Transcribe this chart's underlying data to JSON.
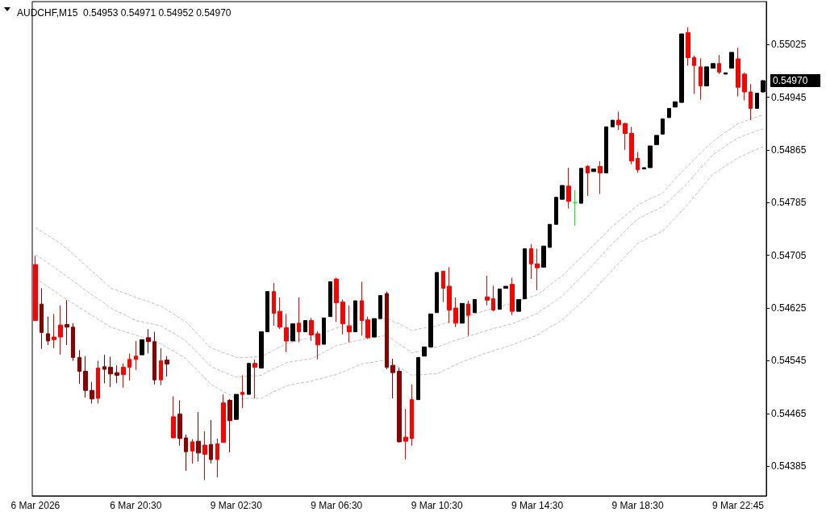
{
  "chart_data": {
    "type": "candlestick",
    "title": "AUDCHF,M15  0.54953 0.54971 0.54952 0.54970",
    "categories": [
      "6 Mar 2026",
      null,
      null,
      null,
      null,
      null,
      null,
      null,
      null,
      null,
      null,
      null,
      null,
      null,
      null,
      null,
      "6 Mar 20:30",
      null,
      null,
      null,
      null,
      null,
      null,
      null,
      null,
      null,
      null,
      null,
      null,
      null,
      null,
      null,
      "9 Mar 02:30",
      null,
      null,
      null,
      null,
      null,
      null,
      null,
      null,
      null,
      null,
      null,
      null,
      null,
      null,
      null,
      "9 Mar 06:30",
      null,
      null,
      null,
      null,
      null,
      null,
      null,
      null,
      null,
      null,
      null,
      null,
      null,
      null,
      null,
      "9 Mar 10:30",
      null,
      null,
      null,
      null,
      null,
      null,
      null,
      null,
      null,
      null,
      null,
      null,
      null,
      null,
      null,
      "9 Mar 14:30",
      null,
      null,
      null,
      null,
      null,
      null,
      null,
      null,
      null,
      null,
      null,
      null,
      null,
      null,
      null,
      "9 Mar 18:30",
      null,
      null,
      null,
      null,
      null,
      null,
      null,
      null,
      null,
      null,
      null,
      null,
      null,
      null,
      null,
      "9 Mar 22:45",
      null,
      null,
      null,
      null
    ],
    "ohlc": [
      [
        0.54691,
        0.54704,
        0.54606,
        0.54606
      ],
      [
        0.54631,
        0.54655,
        0.54563,
        0.54588
      ],
      [
        0.54586,
        0.54612,
        0.54569,
        0.54575
      ],
      [
        0.54581,
        0.54616,
        0.54564,
        0.54577
      ],
      [
        0.54599,
        0.54629,
        0.54554,
        0.54581
      ],
      [
        0.546,
        0.54637,
        0.54569,
        0.54596
      ],
      [
        0.54596,
        0.54602,
        0.54545,
        0.5455
      ],
      [
        0.5455,
        0.54561,
        0.5451,
        0.54529
      ],
      [
        0.54529,
        0.54552,
        0.54489,
        0.545
      ],
      [
        0.545,
        0.54513,
        0.5448,
        0.54487
      ],
      [
        0.54534,
        0.54545,
        0.5448,
        0.54488
      ],
      [
        0.54536,
        0.54554,
        0.54511,
        0.54532
      ],
      [
        0.54535,
        0.54551,
        0.54505,
        0.54525
      ],
      [
        0.54527,
        0.54538,
        0.54511,
        0.54523
      ],
      [
        0.54535,
        0.54541,
        0.54504,
        0.54524
      ],
      [
        0.54547,
        0.54556,
        0.54515,
        0.54535
      ],
      [
        0.54552,
        0.54575,
        0.54531,
        0.54547
      ],
      [
        0.54554,
        0.54577,
        0.54554,
        0.54577
      ],
      [
        0.5458,
        0.54593,
        0.54556,
        0.54574
      ],
      [
        0.54574,
        0.54589,
        0.54509,
        0.54516
      ],
      [
        0.54545,
        0.54564,
        0.54508,
        0.54516
      ],
      [
        0.54546,
        0.54552,
        0.54521,
        0.5454
      ],
      [
        0.5446,
        0.54491,
        0.54428,
        0.54428
      ],
      [
        0.54464,
        0.54485,
        0.54416,
        0.54427
      ],
      [
        0.54428,
        0.54433,
        0.54378,
        0.54407
      ],
      [
        0.54422,
        0.54426,
        0.54389,
        0.54408
      ],
      [
        0.54423,
        0.54467,
        0.54392,
        0.54405
      ],
      [
        0.54417,
        0.54438,
        0.54364,
        0.54403
      ],
      [
        0.54418,
        0.54455,
        0.54389,
        0.54395
      ],
      [
        0.54419,
        0.54427,
        0.54368,
        0.54395
      ],
      [
        0.54481,
        0.54494,
        0.54421,
        0.54421
      ],
      [
        0.54485,
        0.54487,
        0.54406,
        0.54454
      ],
      [
        0.54456,
        0.54494,
        0.54456,
        0.54494
      ],
      [
        0.54497,
        0.54523,
        0.54473,
        0.54494
      ],
      [
        0.54494,
        0.54541,
        0.54494,
        0.54541
      ],
      [
        0.54541,
        0.54547,
        0.54488,
        0.54535
      ],
      [
        0.54534,
        0.54589,
        0.54534,
        0.54589
      ],
      [
        0.54589,
        0.5465,
        0.54589,
        0.5465
      ],
      [
        0.5465,
        0.54663,
        0.54598,
        0.54617
      ],
      [
        0.5462,
        0.54641,
        0.54593,
        0.54596
      ],
      [
        0.54595,
        0.54616,
        0.54558,
        0.54575
      ],
      [
        0.54575,
        0.54601,
        0.54575,
        0.54601
      ],
      [
        0.54602,
        0.54641,
        0.54573,
        0.54589
      ],
      [
        0.54589,
        0.54606,
        0.54589,
        0.54606
      ],
      [
        0.54606,
        0.5461,
        0.54575,
        0.54584
      ],
      [
        0.54586,
        0.5459,
        0.54547,
        0.54569
      ],
      [
        0.5457,
        0.5461,
        0.5457,
        0.5461
      ],
      [
        0.54612,
        0.54665,
        0.54612,
        0.54665
      ],
      [
        0.54669,
        0.54671,
        0.54604,
        0.54633
      ],
      [
        0.54634,
        0.54638,
        0.54585,
        0.54601
      ],
      [
        0.54598,
        0.54629,
        0.54573,
        0.54589
      ],
      [
        0.54589,
        0.54636,
        0.54589,
        0.54636
      ],
      [
        0.54636,
        0.54665,
        0.54583,
        0.54606
      ],
      [
        0.54607,
        0.54612,
        0.54578,
        0.5458
      ],
      [
        0.54581,
        0.54609,
        0.54581,
        0.54609
      ],
      [
        0.54609,
        0.54644,
        0.54609,
        0.54644
      ],
      [
        0.54647,
        0.5465,
        0.54532,
        0.54535
      ],
      [
        0.54538,
        0.54548,
        0.54488,
        0.54527
      ],
      [
        0.54529,
        0.54534,
        0.54421,
        0.54422
      ],
      [
        0.54429,
        0.54472,
        0.54395,
        0.54423
      ],
      [
        0.54486,
        0.54509,
        0.54416,
        0.54427
      ],
      [
        0.54486,
        0.5455,
        0.54486,
        0.5455
      ],
      [
        0.54552,
        0.54566,
        0.54552,
        0.54566
      ],
      [
        0.54566,
        0.54616,
        0.54566,
        0.54616
      ],
      [
        0.54618,
        0.54679,
        0.54618,
        0.54679
      ],
      [
        0.54681,
        0.54681,
        0.54634,
        0.54655
      ],
      [
        0.54658,
        0.54687,
        0.54602,
        0.54622
      ],
      [
        0.54625,
        0.54641,
        0.54596,
        0.54602
      ],
      [
        0.54602,
        0.54632,
        0.54602,
        0.54632
      ],
      [
        0.54631,
        0.54636,
        0.54583,
        0.54614
      ],
      [
        0.54618,
        0.54638,
        0.54618,
        0.54638
      ],
      null,
      [
        0.54642,
        0.54674,
        0.54629,
        0.54637
      ],
      [
        0.54639,
        0.54659,
        0.5462,
        0.54622
      ],
      [
        0.54623,
        0.54654,
        0.54623,
        0.54654
      ],
      [
        0.54655,
        0.54658,
        0.54655,
        0.54658
      ],
      [
        0.54661,
        0.54671,
        0.54614,
        0.5462
      ],
      [
        0.5462,
        0.54638,
        0.5462,
        0.54638
      ],
      [
        0.54639,
        0.54715,
        0.54639,
        0.54715
      ],
      [
        0.54715,
        0.54722,
        0.54669,
        0.54692
      ],
      [
        0.54692,
        0.54715,
        0.54652,
        0.54686
      ],
      [
        0.54687,
        0.54719,
        0.54687,
        0.54719
      ],
      [
        0.54717,
        0.54752,
        0.54717,
        0.54752
      ],
      [
        0.54752,
        0.54793,
        0.54752,
        0.54793
      ],
      [
        0.5479,
        0.54811,
        0.5479,
        0.54811
      ],
      [
        0.5481,
        0.54838,
        0.54776,
        0.54787
      ],
      [
        0.54785,
        0.54804,
        0.5475,
        0.54785
      ],
      [
        0.54784,
        0.54837,
        0.54784,
        0.54837
      ],
      [
        0.5484,
        0.54842,
        0.54795,
        0.5483
      ],
      [
        0.54832,
        0.54836,
        0.54832,
        0.54836
      ],
      [
        0.5484,
        0.54848,
        0.54798,
        0.5483
      ],
      [
        0.5483,
        0.549,
        0.5483,
        0.549
      ],
      [
        0.549,
        0.5491,
        0.549,
        0.5491
      ],
      [
        0.5491,
        0.54923,
        0.54895,
        0.54903
      ],
      [
        0.54905,
        0.54906,
        0.54865,
        0.5489
      ],
      [
        0.5489,
        0.549,
        0.54843,
        0.54848
      ],
      [
        0.54852,
        0.54862,
        0.5483,
        0.54835
      ],
      [
        0.54836,
        0.54838,
        0.54836,
        0.54838
      ],
      [
        0.54838,
        0.54871,
        0.54838,
        0.54871
      ],
      [
        0.54873,
        0.54887,
        0.54873,
        0.54887
      ],
      [
        0.54889,
        0.54912,
        0.54889,
        0.54912
      ],
      [
        0.54914,
        0.54928,
        0.54914,
        0.54928
      ],
      [
        0.5493,
        0.54938,
        0.5493,
        0.54938
      ],
      [
        0.54937,
        0.55041,
        0.54937,
        0.55041
      ],
      [
        0.55043,
        0.55051,
        0.54993,
        0.55005
      ],
      [
        0.55005,
        0.55008,
        0.5495,
        0.54993
      ],
      [
        0.54991,
        0.55004,
        0.54941,
        0.54962
      ],
      [
        0.54962,
        0.54991,
        0.54962,
        0.54991
      ],
      [
        0.54989,
        0.54996,
        0.54989,
        0.54996
      ],
      [
        0.54996,
        0.55009,
        0.5498,
        0.54983
      ],
      [
        0.5498,
        0.54982,
        0.5498,
        0.54982
      ],
      [
        0.54989,
        0.55013,
        0.54989,
        0.55013
      ],
      [
        0.55003,
        0.5502,
        0.54946,
        0.5496
      ],
      [
        0.5498,
        0.54982,
        0.5494,
        0.54953
      ],
      [
        0.54953,
        0.54965,
        0.5491,
        0.54928
      ],
      [
        0.54928,
        0.54951,
        0.54928,
        0.54951
      ],
      [
        0.54953,
        0.54971,
        0.54952,
        0.5497
      ]
    ],
    "colors": [
      "#ff0000",
      "#8b0000",
      "#8b0000",
      "#ff0000",
      "#ff0000",
      "#8b0000",
      "#8b0000",
      "#8b0000",
      "#8b0000",
      "#8b0000",
      "#ff0000",
      "#8b0000",
      "#8b0000",
      "#8b0000",
      "#ff0000",
      "#ff0000",
      "#ff0000",
      "#000000",
      "#8b0000",
      "#8b0000",
      "#ff0000",
      "#8b0000",
      "#ff0000",
      "#8b0000",
      "#8b0000",
      "#ff0000",
      "#8b0000",
      "#ff0000",
      "#8b0000",
      "#ff0000",
      "#ff0000",
      "#8b0000",
      "#000000",
      "#ff0000",
      "#000000",
      "#ff0000",
      "#000000",
      "#000000",
      "#ff0000",
      "#ff0000",
      "#ff0000",
      "#000000",
      "#ff0000",
      "#000000",
      "#ff0000",
      "#ff0000",
      "#000000",
      "#000000",
      "#ff0000",
      "#ff0000",
      "#ff0000",
      "#000000",
      "#ff0000",
      "#ff0000",
      "#000000",
      "#000000",
      "#8b0000",
      "#8b0000",
      "#8b0000",
      "#ff0000",
      "#ff0000",
      "#000000",
      "#000000",
      "#000000",
      "#000000",
      "#ff0000",
      "#ff0000",
      "#ff0000",
      "#000000",
      "#ff0000",
      "#000000",
      "#000000",
      "#ff0000",
      "#ff0000",
      "#000000",
      "#000000",
      "#ff0000",
      "#000000",
      "#000000",
      "#ff0000",
      "#ff0000",
      "#000000",
      "#000000",
      "#000000",
      "#000000",
      "#ff0000",
      "#00ff00",
      "#000000",
      "#ff0000",
      "#000000",
      "#ff0000",
      "#000000",
      "#000000",
      "#ff0000",
      "#ff0000",
      "#ff0000",
      "#ff0000",
      "#000000",
      "#000000",
      "#000000",
      "#000000",
      "#000000",
      "#000000",
      "#000000",
      "#ff0000",
      "#ff0000",
      "#ff0000",
      "#000000",
      "#000000",
      "#ff0000",
      "#000000",
      "#000000",
      "#ff0000",
      "#ff0000",
      "#ff0000",
      "#000000",
      "#000000"
    ],
    "series": [
      {
        "type": "line",
        "color": "#c0c0c0",
        "values": [
          0.54747,
          0.54741,
          0.54735,
          0.54729,
          0.54723,
          0.54715,
          0.54707,
          0.54698,
          0.5469,
          0.54681,
          0.54673,
          0.54664,
          0.54655,
          0.54652,
          0.54648,
          0.54645,
          0.54641,
          0.54638,
          0.54635,
          0.54631,
          0.54628,
          0.54622,
          0.54616,
          0.5461,
          0.54604,
          0.54594,
          0.54584,
          0.54574,
          0.54564,
          0.54561,
          0.54557,
          0.54554,
          0.5455,
          0.5455,
          0.5455,
          0.54551,
          0.54551,
          0.54556,
          0.54561,
          0.54566,
          0.54571,
          0.54573,
          0.54576,
          0.54578,
          0.5458,
          0.54584,
          0.54588,
          0.54591,
          0.54595,
          0.54597,
          0.54599,
          0.546,
          0.54602,
          0.54604,
          0.54606,
          0.54608,
          0.5461,
          0.54605,
          0.54601,
          0.54596,
          0.54591,
          0.54593,
          0.54595,
          0.54596,
          0.54598,
          0.54601,
          0.54604,
          0.54607,
          0.5461,
          0.54613,
          0.54616,
          0.54619,
          0.54622,
          0.54625,
          0.54627,
          0.5463,
          0.54632,
          0.54635,
          0.54639,
          0.54642,
          0.54645,
          0.54652,
          0.5466,
          0.54667,
          0.54674,
          0.54683,
          0.54693,
          0.54702,
          0.54711,
          0.54721,
          0.5473,
          0.5474,
          0.54749,
          0.54757,
          0.54765,
          0.54773,
          0.54781,
          0.54786,
          0.54791,
          0.54795,
          0.548,
          0.5481,
          0.54821,
          0.54831,
          0.54841,
          0.5485,
          0.5486,
          0.54869,
          0.54878,
          0.54885,
          0.54892,
          0.54898,
          0.54905,
          0.54908,
          0.54912,
          0.54915,
          0.54918
        ]
      },
      {
        "type": "line",
        "color": "#c0c0c0",
        "values": [
          0.54706,
          0.547,
          0.54693,
          0.54687,
          0.5468,
          0.54673,
          0.54666,
          0.54659,
          0.54652,
          0.54645,
          0.54639,
          0.54632,
          0.54625,
          0.5462,
          0.54616,
          0.54611,
          0.54606,
          0.54604,
          0.54602,
          0.546,
          0.54598,
          0.54592,
          0.54587,
          0.54581,
          0.54575,
          0.54565,
          0.54556,
          0.54546,
          0.54536,
          0.54532,
          0.54528,
          0.54524,
          0.5452,
          0.54521,
          0.54522,
          0.54522,
          0.54523,
          0.54528,
          0.54533,
          0.54537,
          0.54542,
          0.54544,
          0.54545,
          0.54547,
          0.54548,
          0.54553,
          0.54558,
          0.54563,
          0.54568,
          0.5457,
          0.54573,
          0.54575,
          0.54577,
          0.54579,
          0.5458,
          0.54582,
          0.54583,
          0.54577,
          0.5457,
          0.54564,
          0.54557,
          0.54559,
          0.54562,
          0.54564,
          0.54566,
          0.54569,
          0.54573,
          0.54576,
          0.54579,
          0.54582,
          0.54585,
          0.54588,
          0.54591,
          0.54594,
          0.54596,
          0.54599,
          0.54601,
          0.54605,
          0.54609,
          0.54613,
          0.54617,
          0.54624,
          0.5463,
          0.54637,
          0.54643,
          0.54653,
          0.54663,
          0.54672,
          0.54682,
          0.54692,
          0.54703,
          0.54713,
          0.54723,
          0.54732,
          0.54742,
          0.54751,
          0.5476,
          0.54765,
          0.5477,
          0.54774,
          0.54779,
          0.54788,
          0.54797,
          0.54806,
          0.54815,
          0.54826,
          0.54837,
          0.54847,
          0.54858,
          0.54864,
          0.54871,
          0.54877,
          0.54883,
          0.54887,
          0.5489,
          0.54894,
          0.54897
        ]
      },
      {
        "type": "line",
        "color": "#c0c0c0",
        "values": [
          0.5467,
          0.54664,
          0.54657,
          0.54651,
          0.54644,
          0.54638,
          0.54632,
          0.54626,
          0.5462,
          0.54614,
          0.54608,
          0.54602,
          0.54596,
          0.54593,
          0.5459,
          0.54587,
          0.54584,
          0.54581,
          0.54578,
          0.54574,
          0.54571,
          0.54565,
          0.5456,
          0.54554,
          0.54548,
          0.54538,
          0.54529,
          0.54519,
          0.54509,
          0.54504,
          0.54498,
          0.54493,
          0.54487,
          0.54487,
          0.54488,
          0.54488,
          0.54488,
          0.54493,
          0.54498,
          0.54502,
          0.54507,
          0.54509,
          0.54511,
          0.54512,
          0.54514,
          0.54517,
          0.54519,
          0.54522,
          0.54524,
          0.54528,
          0.54532,
          0.54536,
          0.5454,
          0.54542,
          0.54543,
          0.54545,
          0.54546,
          0.5454,
          0.54535,
          0.54529,
          0.54523,
          0.54524,
          0.54524,
          0.54525,
          0.54525,
          0.5453,
          0.54534,
          0.54539,
          0.54543,
          0.54547,
          0.5455,
          0.54554,
          0.54557,
          0.5456,
          0.54563,
          0.54566,
          0.54569,
          0.54573,
          0.54577,
          0.5458,
          0.54584,
          0.5459,
          0.54596,
          0.54601,
          0.54607,
          0.54616,
          0.54625,
          0.54633,
          0.54642,
          0.54652,
          0.54663,
          0.54673,
          0.54683,
          0.54693,
          0.54703,
          0.54713,
          0.54723,
          0.54728,
          0.54733,
          0.54737,
          0.54742,
          0.54752,
          0.54762,
          0.54772,
          0.54782,
          0.54794,
          0.54805,
          0.54817,
          0.54828,
          0.54834,
          0.54841,
          0.54847,
          0.54853,
          0.54857,
          0.54862,
          0.54866,
          0.5487
        ]
      }
    ],
    "line_style": "dashed",
    "ylim": [
      0.5434,
      0.5509
    ],
    "yticks": [
      0.54385,
      0.54465,
      0.54545,
      0.54625,
      0.54705,
      0.54785,
      0.54865,
      0.54945,
      0.55025
    ],
    "annotations": [
      "0.54970"
    ]
  }
}
